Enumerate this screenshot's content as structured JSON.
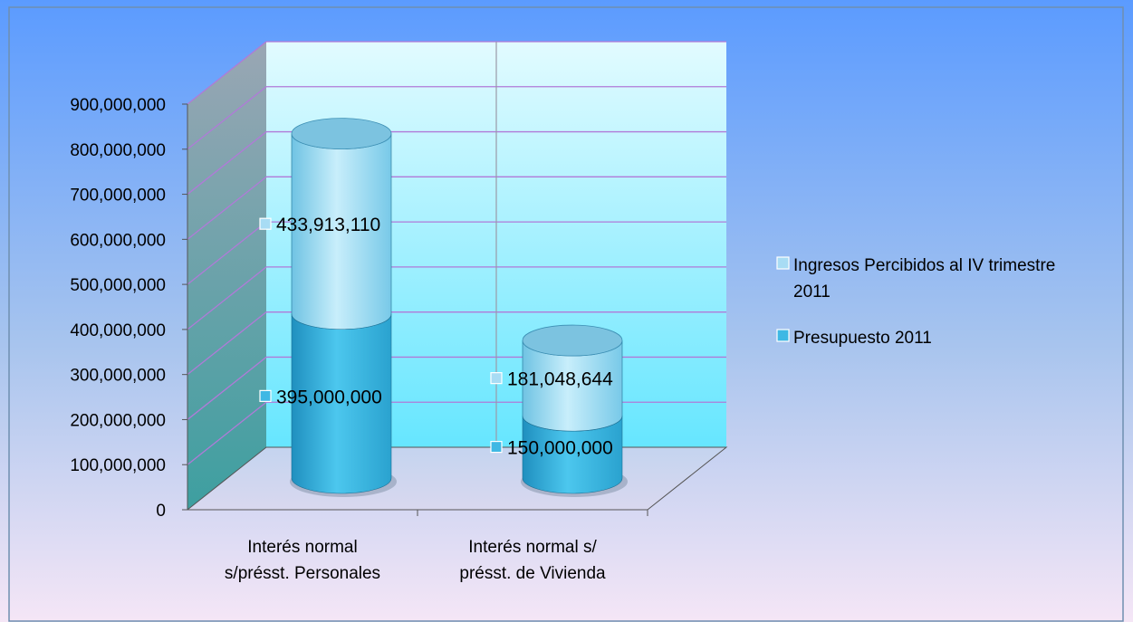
{
  "chart_data": {
    "type": "bar",
    "subtype": "stacked-3d-cylinder",
    "title": "",
    "xlabel": "",
    "ylabel": "",
    "categories": [
      [
        "Interés normal",
        "s/présst. Personales"
      ],
      [
        "Interés normal s/",
        "présst.  de Vivienda"
      ]
    ],
    "series": [
      {
        "name": "Presupuesto   2011",
        "values": [
          395000000,
          150000000
        ],
        "labels": [
          "395,000,000",
          "150,000,000"
        ],
        "color": "#3fb8e4"
      },
      {
        "name": "Ingresos Percibidos al IV trimestre 2011",
        "legend_lines": [
          "Ingresos Percibidos al IV trimestre",
          "2011"
        ],
        "values": [
          433913110,
          181048644
        ],
        "labels": [
          "433,913,110",
          "181,048,644"
        ],
        "color": "#a8dcf4"
      }
    ],
    "ylim": [
      0,
      900000000
    ],
    "yticks": [
      "0",
      "100,000,000",
      "200,000,000",
      "300,000,000",
      "400,000,000",
      "500,000,000",
      "600,000,000",
      "700,000,000",
      "800,000,000",
      "900,000,000"
    ],
    "grid": true,
    "legend_position": "right"
  }
}
